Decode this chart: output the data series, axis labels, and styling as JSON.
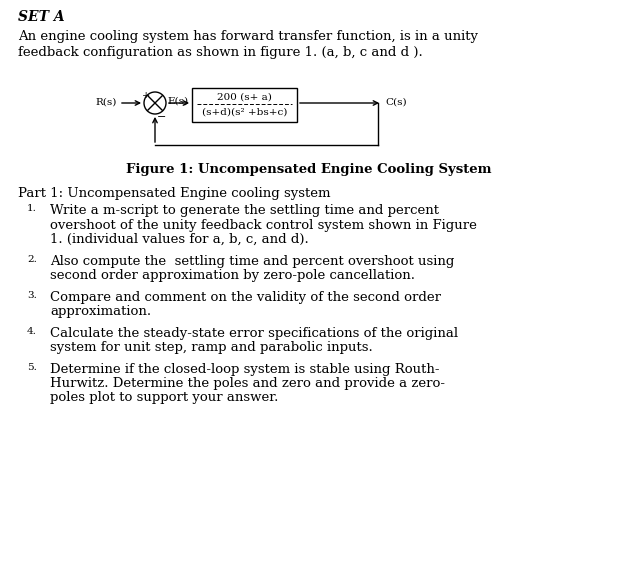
{
  "title": "SET A",
  "intro_line1": "An engine cooling system has forward transfer function, is in a unity",
  "intro_line2": "feedback configuration as shown in figure 1. (a, b, c and d ).",
  "fig_caption": "Figure 1: Uncompensated Engine Cooling System",
  "tf_numerator": "200 (s+ a)",
  "tf_denominator": "(s+d)(s² +bs+c)",
  "part_title": "Part 1: Uncompensated Engine cooling system",
  "items": [
    [
      "Write a m-script to generate the settling time and percent",
      "overshoot of the unity feedback control system shown in Figure",
      "1. (individual values for a, b, c, and d)."
    ],
    [
      "Also compute the  settling time and percent overshoot using",
      "second order approximation by zero-pole cancellation."
    ],
    [
      "Compare and comment on the validity of the second order",
      "approximation."
    ],
    [
      "Calculate the steady-state error specifications of the original",
      "system for unit step, ramp and parabolic inputs."
    ],
    [
      "Determine if the closed-loop system is stable using Routh-",
      "Hurwitz. Determine the poles and zero and provide a zero-",
      "poles plot to support your answer."
    ]
  ],
  "bg_color": "#ffffff",
  "text_color": "#000000",
  "font_family": "serif",
  "title_fontsize": 10,
  "body_fontsize": 9.5,
  "diagram_fontsize": 7.5
}
